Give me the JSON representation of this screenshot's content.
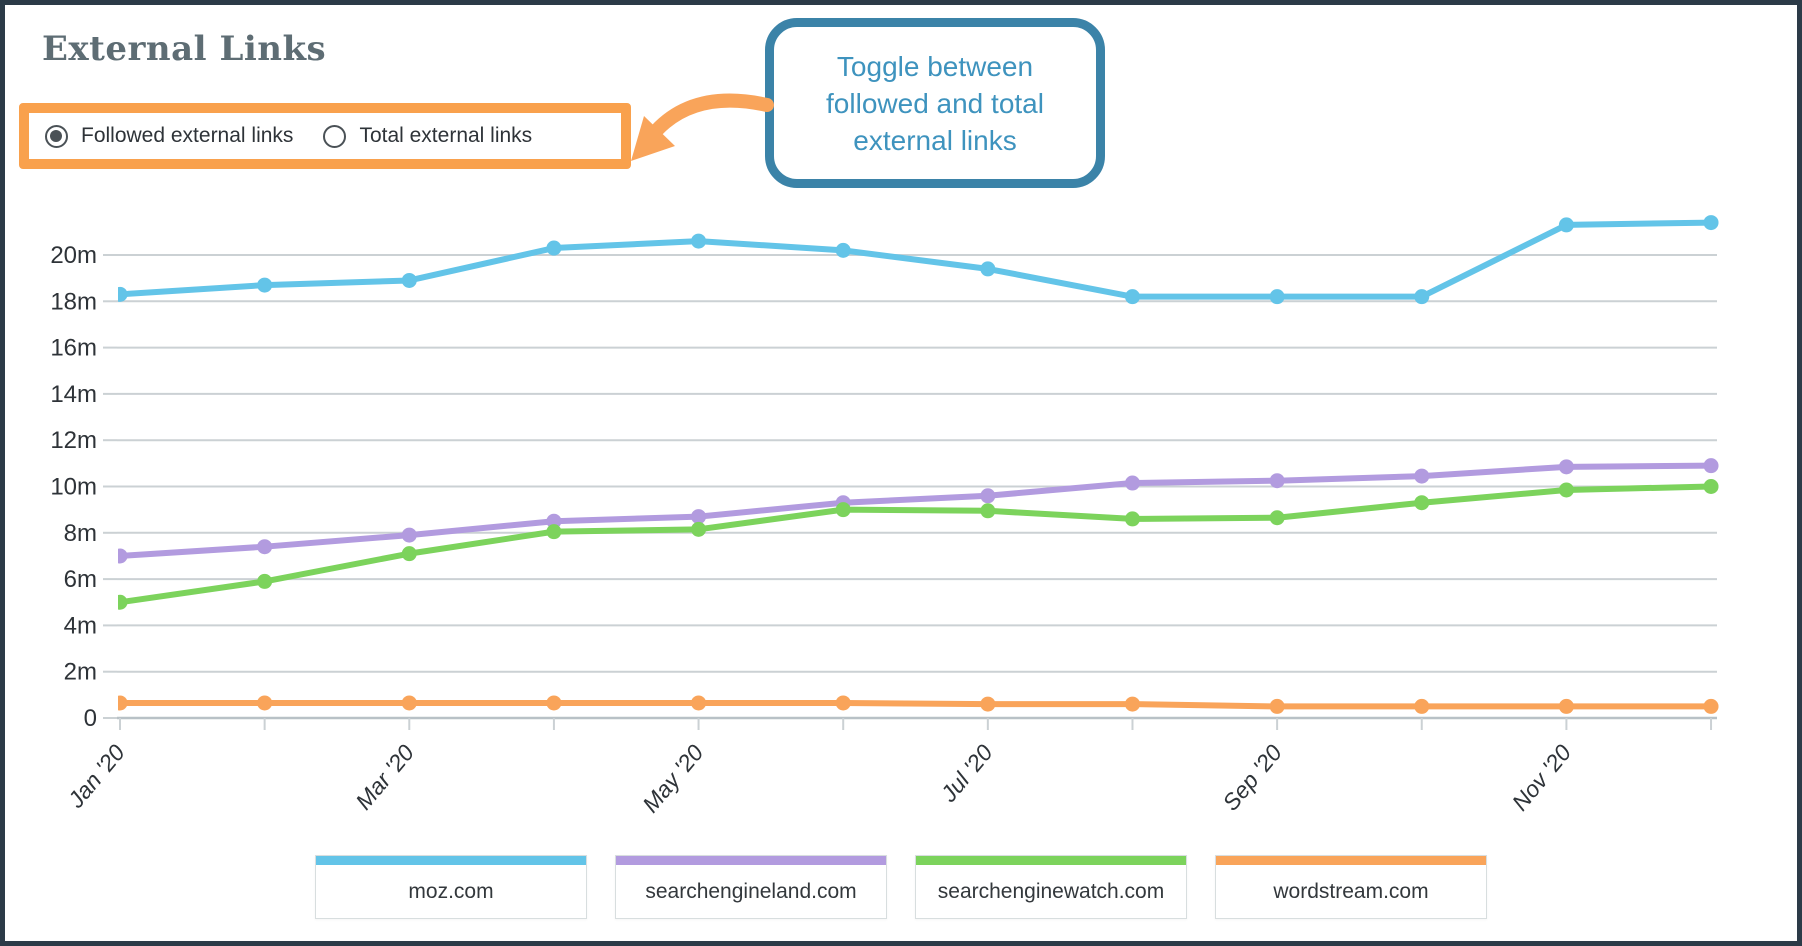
{
  "header": {
    "title": "External Links"
  },
  "toggle": {
    "highlight_color": "#F9A14D",
    "options": [
      {
        "label": "Followed external links",
        "selected": true
      },
      {
        "label": "Total external links",
        "selected": false
      }
    ]
  },
  "callout": {
    "text": "Toggle between followed and total external links",
    "lines": [
      "Toggle between",
      "followed and total",
      "external links"
    ],
    "border_color": "#3B83A8",
    "text_color": "#3E93BE",
    "arrow_color": "#F9A45A"
  },
  "chart_data": {
    "type": "line",
    "title": "External Links",
    "unit": "millions of links",
    "x": [
      "Jan '20",
      "Feb '20",
      "Mar '20",
      "Apr '20",
      "May '20",
      "Jun '20",
      "Jul '20",
      "Aug '20",
      "Sep '20",
      "Oct '20",
      "Nov '20",
      "Dec '20"
    ],
    "x_tick_labels_shown": [
      "Jan '20",
      "Mar '20",
      "May '20",
      "Jul '20",
      "Sep '20",
      "Nov '20"
    ],
    "series": [
      {
        "name": "moz.com",
        "color": "#63C4E8",
        "values": [
          18.3,
          18.7,
          18.9,
          20.3,
          20.6,
          20.2,
          19.4,
          18.2,
          18.2,
          18.2,
          21.3,
          21.4
        ]
      },
      {
        "name": "searchengineland.com",
        "color": "#B29BDF",
        "values": [
          7.0,
          7.4,
          7.9,
          8.5,
          8.7,
          9.3,
          9.6,
          10.15,
          10.25,
          10.45,
          10.85,
          10.9
        ]
      },
      {
        "name": "searchenginewatch.com",
        "color": "#7CD35C",
        "values": [
          5.0,
          5.9,
          7.1,
          8.05,
          8.15,
          9.0,
          8.95,
          8.6,
          8.65,
          9.3,
          9.85,
          10.0
        ]
      },
      {
        "name": "wordstream.com",
        "color": "#F9A45A",
        "values": [
          0.65,
          0.65,
          0.65,
          0.65,
          0.65,
          0.65,
          0.6,
          0.6,
          0.5,
          0.5,
          0.5,
          0.5
        ]
      }
    ],
    "ylabel": "",
    "xlabel": "",
    "ylim": [
      0,
      22
    ],
    "yticks": [
      {
        "value": 0,
        "label": "0"
      },
      {
        "value": 2,
        "label": "2m"
      },
      {
        "value": 4,
        "label": "4m"
      },
      {
        "value": 6,
        "label": "6m"
      },
      {
        "value": 8,
        "label": "8m"
      },
      {
        "value": 10,
        "label": "10m"
      },
      {
        "value": 12,
        "label": "12m"
      },
      {
        "value": 14,
        "label": "14m"
      },
      {
        "value": 16,
        "label": "16m"
      },
      {
        "value": 18,
        "label": "18m"
      },
      {
        "value": 20,
        "label": "20m"
      }
    ],
    "grid": true,
    "legend_position": "bottom",
    "colors": {
      "gridline": "#CBD1D4",
      "axis": "#B8C1C6",
      "tick_text": "#2E3338"
    }
  }
}
